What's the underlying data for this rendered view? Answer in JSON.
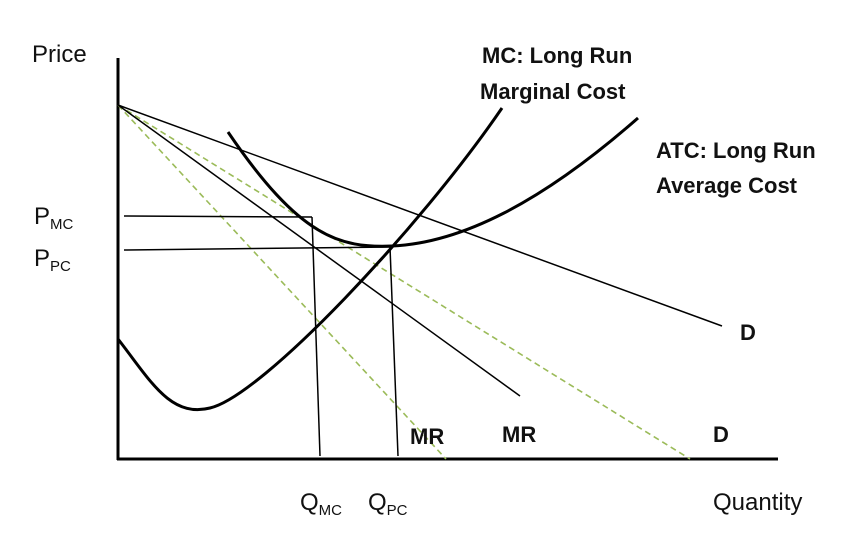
{
  "axes": {
    "y_label": "Price",
    "x_label": "Quantity"
  },
  "price_labels": {
    "p_mc": {
      "main": "P",
      "sub": "MC"
    },
    "p_pc": {
      "main": "P",
      "sub": "PC"
    }
  },
  "quantity_labels": {
    "q_mc": {
      "main": "Q",
      "sub": "MC"
    },
    "q_pc": {
      "main": "Q",
      "sub": "PC"
    }
  },
  "curve_labels": {
    "mc_line1": "MC: Long Run",
    "mc_line2": "Marginal Cost",
    "atc_line1": "ATC: Long Run",
    "atc_line2": "Average Cost",
    "d_solid": "D",
    "d_dashed": "D",
    "mr_solid": "MR",
    "mr_dashed": "MR"
  },
  "colors": {
    "curve": "#000000",
    "dashed": "#9bbb59",
    "text": "#111111"
  }
}
